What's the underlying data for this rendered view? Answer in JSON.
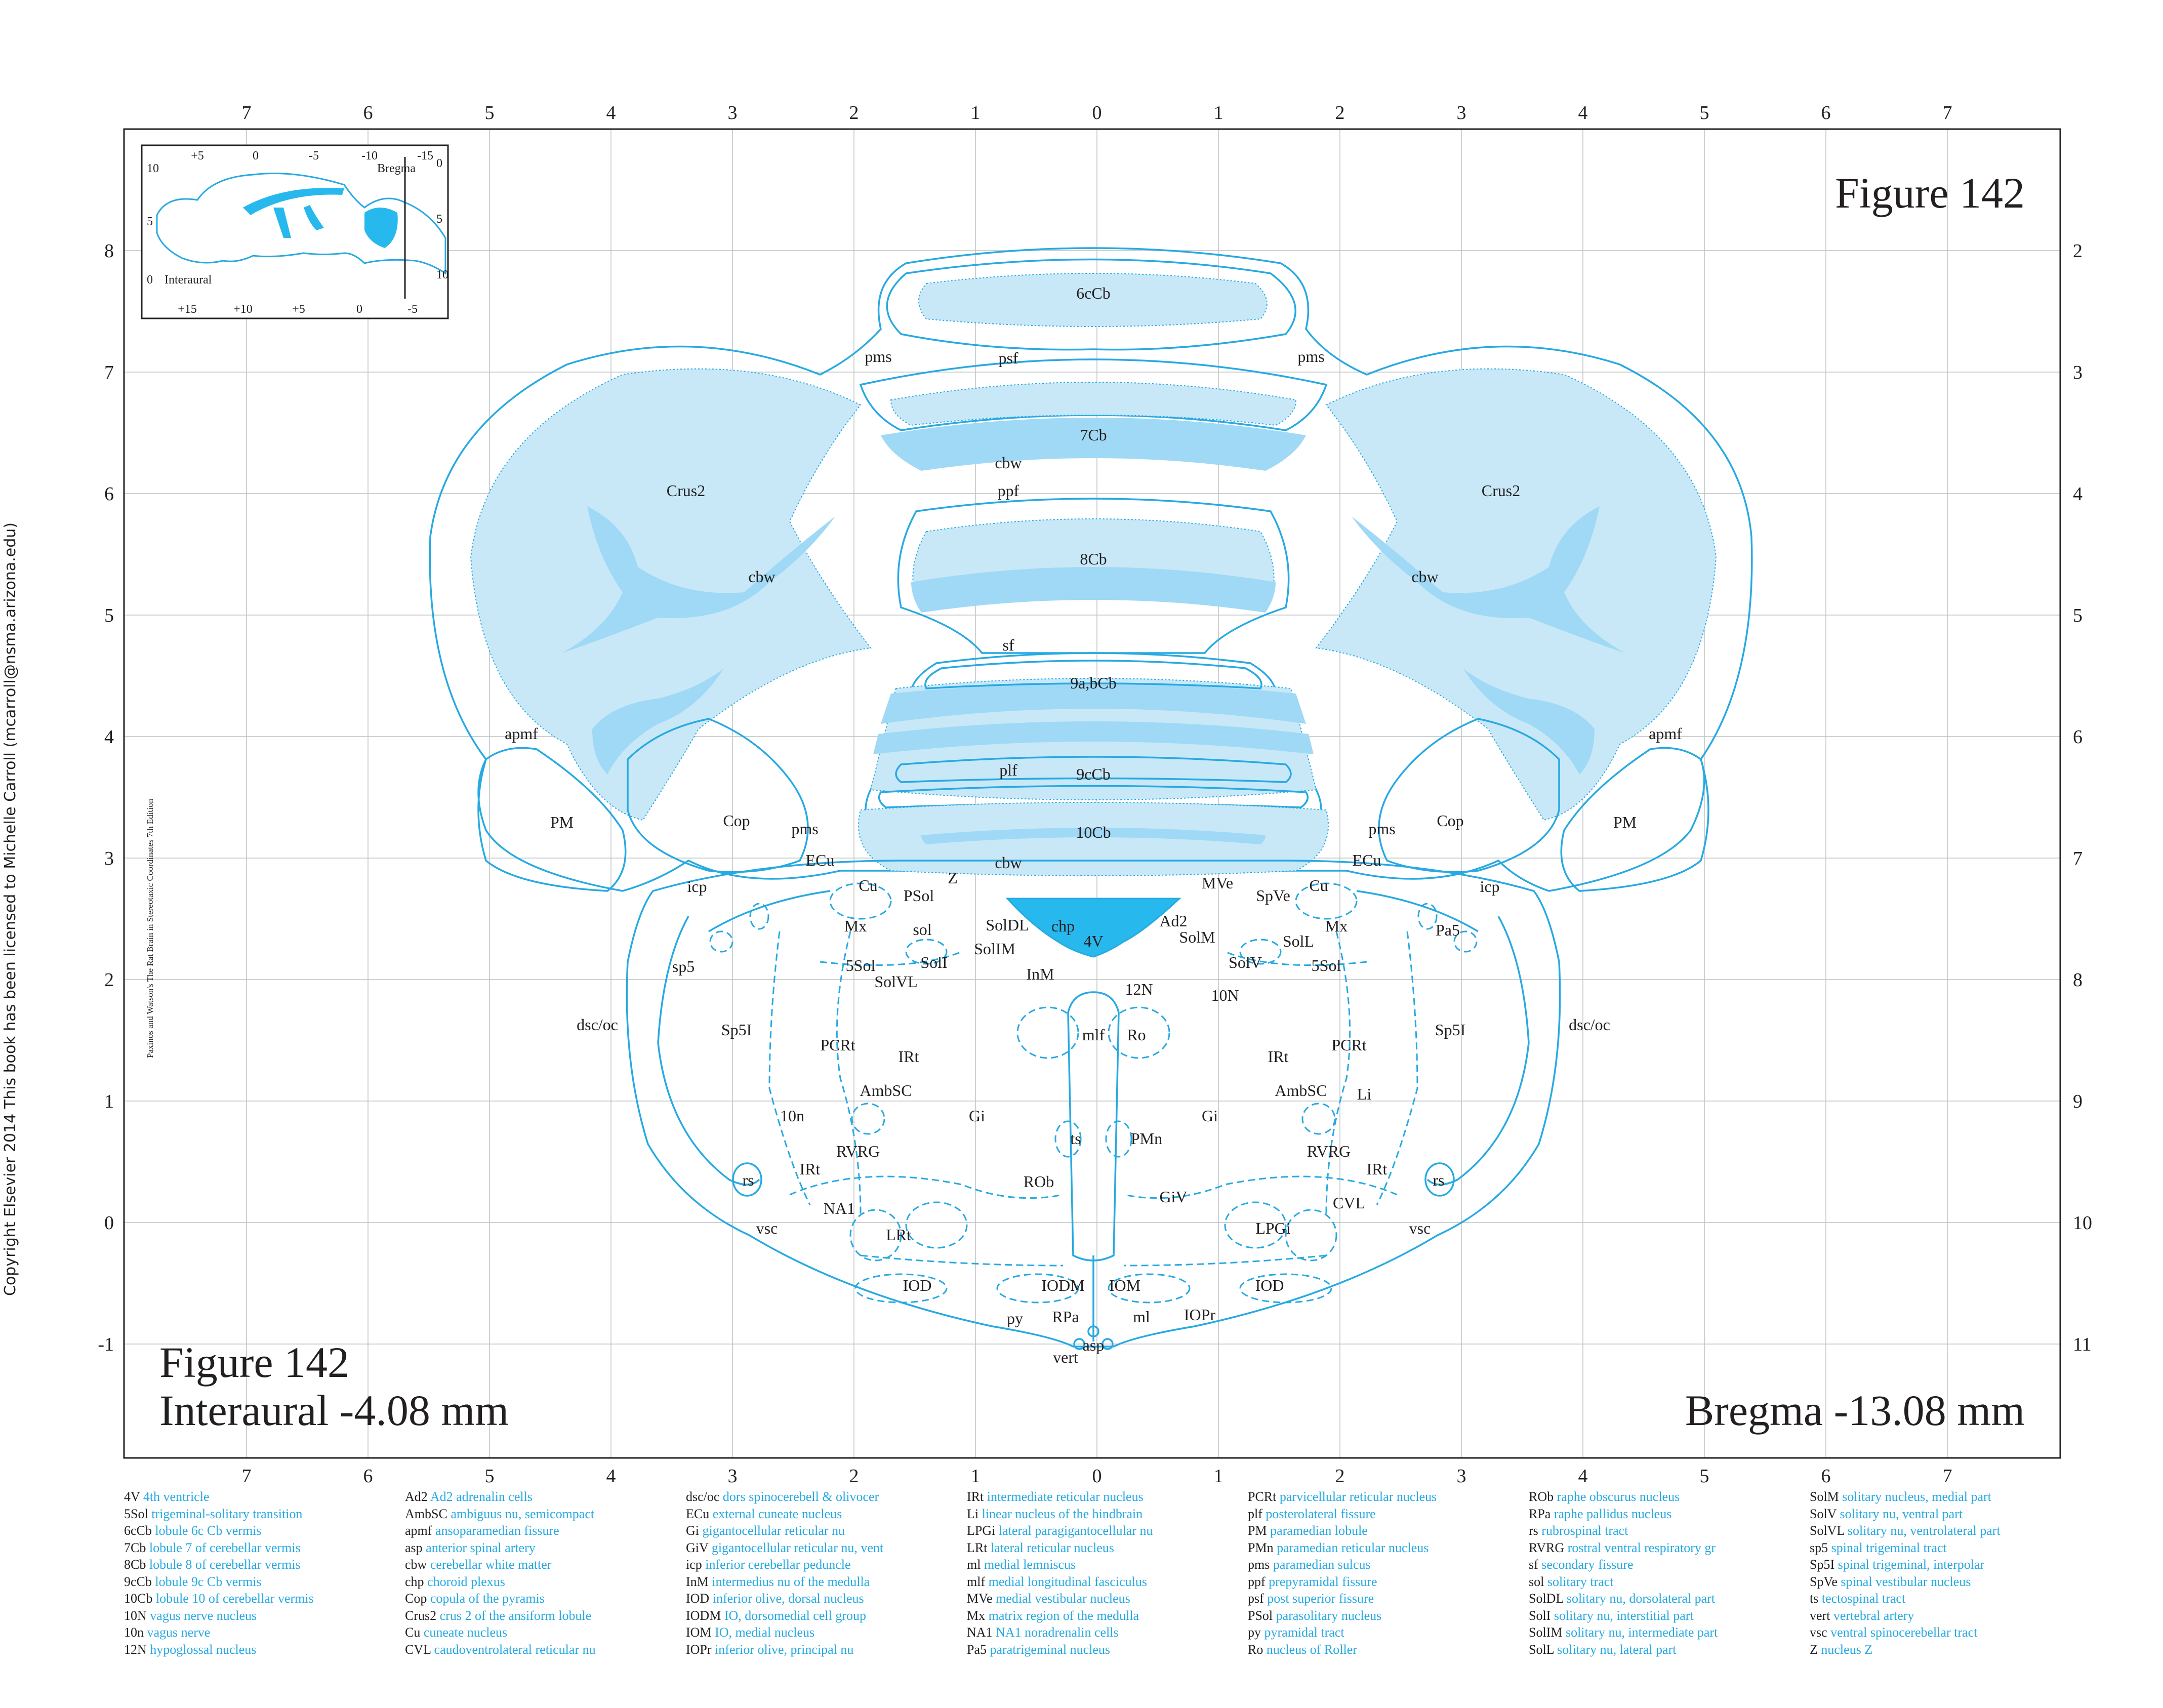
{
  "figure": {
    "title": "Figure 142",
    "interaural": "Interaural -4.08 mm",
    "bregma": "Bregma -13.08 mm"
  },
  "copyright": "Copyright Elsevier 2014 This book has been licensed to Michelle Carroll (mcarroll@nsma.arizona.edu)",
  "spine_text": "Paxinos and Watson's The Rat Brain in Stereotaxic Coordinates    7th Edition",
  "colors": {
    "structure": "#27a9e1",
    "fill_light": "#c8e8f8",
    "fill_mid": "#9fd9f5",
    "ventricle": "#27b8ee",
    "grid": "#bfc2c4"
  },
  "axes": {
    "top": [
      "7",
      "6",
      "5",
      "4",
      "3",
      "2",
      "1",
      "0",
      "1",
      "2",
      "3",
      "4",
      "5",
      "6",
      "7"
    ],
    "bottom": [
      "7",
      "6",
      "5",
      "4",
      "3",
      "2",
      "1",
      "0",
      "1",
      "2",
      "3",
      "4",
      "5",
      "6",
      "7"
    ],
    "left": [
      "8",
      "7",
      "6",
      "5",
      "4",
      "3",
      "2",
      "1",
      "0",
      "-1"
    ],
    "right": [
      "2",
      "3",
      "4",
      "5",
      "6",
      "7",
      "8",
      "9",
      "10",
      "11"
    ]
  },
  "inset": {
    "top_ticks": [
      "+5",
      "0",
      "-5",
      "-10",
      "-15"
    ],
    "bottom_ticks": [
      "+15",
      "+10",
      "+5",
      "0",
      "-5"
    ],
    "left_ticks": [
      "10",
      "5",
      "0"
    ],
    "right_ticks": [
      "0",
      "5",
      "10"
    ],
    "bregma_label": "Bregma",
    "interaural_label": "Interaural"
  },
  "labels": {
    "l6cCb": "6cCb",
    "pms_l": "pms",
    "pms_r": "pms",
    "psf": "psf",
    "l7Cb": "7Cb",
    "cbw_mid": "cbw",
    "crus2_l": "Crus2",
    "crus2_r": "Crus2",
    "ppf": "ppf",
    "cbw_l": "cbw",
    "cbw_r": "cbw",
    "l8Cb": "8Cb",
    "sf": "sf",
    "l9abCb": "9a,bCb",
    "apmf_l": "apmf",
    "apmf_r": "apmf",
    "plf": "plf",
    "l9cCb": "9cCb",
    "pm_l": "PM",
    "pm_r": "PM",
    "cop_l": "Cop",
    "cop_r": "Cop",
    "pms_l2": "pms",
    "pms_r2": "pms",
    "l10Cb": "10Cb",
    "cbw_low": "cbw",
    "ecu_l": "ECu",
    "ecu_r": "ECu",
    "cu_l": "Cu",
    "cu_r": "Cu",
    "z": "Z",
    "psol": "PSol",
    "mve": "MVe",
    "spve": "SpVe",
    "icp_l": "icp",
    "icp_r": "icp",
    "chp": "chp",
    "v4": "4V",
    "ad2": "Ad2",
    "pa5": "Pa5",
    "mx_l": "Mx",
    "mx_r": "Mx",
    "sol": "sol",
    "soldl": "SolDL",
    "solm": "SolM",
    "soll": "SolL",
    "solim": "SolIM",
    "sol5_l": "5Sol",
    "sol5_r": "5Sol",
    "solI": "SolI",
    "solv": "SolV",
    "solvl": "SolVL",
    "inm": "InM",
    "n12": "12N",
    "n10N": "10N",
    "sp5_l": "sp5",
    "dscoc_l": "dsc/oc",
    "dscoc_r": "dsc/oc",
    "sp5i_l": "Sp5I",
    "sp5i_r": "Sp5I",
    "pcrt_l": "PCRt",
    "pcrt_r": "PCRt",
    "mlf": "mlf",
    "ro": "Ro",
    "irt_l": "IRt",
    "irt_r": "IRt",
    "ambsc_l": "AmbSC",
    "ambsc_r": "AmbSC",
    "li": "Li",
    "n10n": "10n",
    "gi_l": "Gi",
    "gi_r": "Gi",
    "ts": "ts",
    "pmn": "PMn",
    "rvrg_l": "RVRG",
    "rvrg_r": "RVRG",
    "irt_l2": "IRt",
    "irt_r2": "IRt",
    "rs_l": "rs",
    "rs_r": "rs",
    "rob": "ROb",
    "giv": "GiV",
    "cvl": "CVL",
    "na1": "NA1",
    "lpgi": "LPGi",
    "vsc_l": "vsc",
    "vsc_r": "vsc",
    "lrt": "LRt",
    "iod_l": "IOD",
    "iod_r": "IOD",
    "iodm": "IODM",
    "iom": "IOM",
    "py": "py",
    "rpa": "RPa",
    "ml": "ml",
    "iopr": "IOPr",
    "asp": "asp",
    "vert": "vert"
  },
  "legend": [
    [
      [
        "4V",
        "4th ventricle"
      ],
      [
        "5Sol",
        "trigeminal-solitary transition"
      ],
      [
        "6cCb",
        "lobule 6c Cb vermis"
      ],
      [
        "7Cb",
        "lobule 7 of cerebellar vermis"
      ],
      [
        "8Cb",
        "lobule 8 of cerebellar vermis"
      ],
      [
        "9cCb",
        "lobule 9c Cb vermis"
      ],
      [
        "10Cb",
        "lobule 10 of cerebellar vermis"
      ],
      [
        "10N",
        "vagus nerve nucleus"
      ],
      [
        "10n",
        "vagus nerve"
      ],
      [
        "12N",
        "hypoglossal nucleus"
      ]
    ],
    [
      [
        "Ad2",
        "Ad2 adrenalin cells"
      ],
      [
        "AmbSC",
        "ambiguus nu, semicompact"
      ],
      [
        "apmf",
        "ansoparamedian fissure"
      ],
      [
        "asp",
        "anterior spinal artery"
      ],
      [
        "cbw",
        "cerebellar white matter"
      ],
      [
        "chp",
        "choroid plexus"
      ],
      [
        "Cop",
        "copula of the pyramis"
      ],
      [
        "Crus2",
        "crus 2 of the ansiform lobule"
      ],
      [
        "Cu",
        "cuneate nucleus"
      ],
      [
        "CVL",
        "caudoventrolateral reticular nu"
      ]
    ],
    [
      [
        "dsc/oc",
        "dors spinocerebell & olivocer"
      ],
      [
        "ECu",
        "external cuneate nucleus"
      ],
      [
        "Gi",
        "gigantocellular reticular nu"
      ],
      [
        "GiV",
        "gigantocellular reticular nu, vent"
      ],
      [
        "icp",
        "inferior cerebellar peduncle"
      ],
      [
        "InM",
        "intermedius nu of the medulla"
      ],
      [
        "IOD",
        "inferior olive, dorsal nucleus"
      ],
      [
        "IODM",
        "IO, dorsomedial cell group"
      ],
      [
        "IOM",
        "IO, medial nucleus"
      ],
      [
        "IOPr",
        "inferior olive, principal nu"
      ]
    ],
    [
      [
        "IRt",
        "intermediate reticular nucleus"
      ],
      [
        "Li",
        "linear nucleus of the hindbrain"
      ],
      [
        "LPGi",
        "lateral paragigantocellular nu"
      ],
      [
        "LRt",
        "lateral reticular nucleus"
      ],
      [
        "ml",
        "medial lemniscus"
      ],
      [
        "mlf",
        "medial longitudinal fasciculus"
      ],
      [
        "MVe",
        "medial vestibular nucleus"
      ],
      [
        "Mx",
        "matrix region of the medulla"
      ],
      [
        "NA1",
        "NA1 noradrenalin cells"
      ],
      [
        "Pa5",
        "paratrigeminal nucleus"
      ]
    ],
    [
      [
        "PCRt",
        "parvicellular reticular nucleus"
      ],
      [
        "plf",
        "posterolateral fissure"
      ],
      [
        "PM",
        "paramedian lobule"
      ],
      [
        "PMn",
        "paramedian reticular nucleus"
      ],
      [
        "pms",
        "paramedian sulcus"
      ],
      [
        "ppf",
        "prepyramidal fissure"
      ],
      [
        "psf",
        "post superior fissure"
      ],
      [
        "PSol",
        "parasolitary nucleus"
      ],
      [
        "py",
        "pyramidal tract"
      ],
      [
        "Ro",
        "nucleus of Roller"
      ]
    ],
    [
      [
        "ROb",
        "raphe obscurus nucleus"
      ],
      [
        "RPa",
        "raphe pallidus nucleus"
      ],
      [
        "rs",
        "rubrospinal tract"
      ],
      [
        "RVRG",
        "rostral ventral respiratory gr"
      ],
      [
        "sf",
        "secondary fissure"
      ],
      [
        "sol",
        "solitary tract"
      ],
      [
        "SolDL",
        "solitary nu, dorsolateral part"
      ],
      [
        "SolI",
        "solitary nu, interstitial part"
      ],
      [
        "SolIM",
        "solitary nu, intermediate part"
      ],
      [
        "SolL",
        "solitary nu, lateral part"
      ]
    ],
    [
      [
        "SolM",
        "solitary nucleus, medial part"
      ],
      [
        "SolV",
        "solitary nu, ventral part"
      ],
      [
        "SolVL",
        "solitary nu, ventrolateral part"
      ],
      [
        "sp5",
        "spinal trigeminal tract"
      ],
      [
        "Sp5I",
        "spinal trigeminal, interpolar"
      ],
      [
        "SpVe",
        "spinal vestibular nucleus"
      ],
      [
        "ts",
        "tectospinal tract"
      ],
      [
        "vert",
        "vertebral artery"
      ],
      [
        "vsc",
        "ventral spinocerebellar tract"
      ],
      [
        "Z",
        "nucleus Z"
      ]
    ]
  ]
}
